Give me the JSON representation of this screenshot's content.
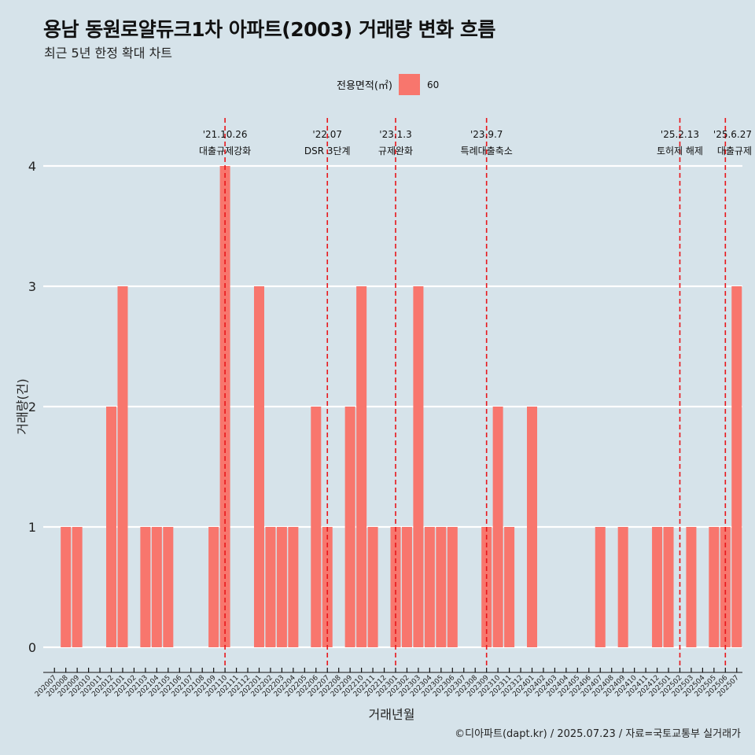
{
  "title": "용남 동원로얄듀크1차 아파트(2003) 거래량 변화 흐름",
  "subtitle": "최근 5년 한정 확대 차트",
  "caption": "©디아파트(dapt.kr) / 2025.07.23 / 자료=국토교통부 실거래가",
  "colors": {
    "background": "#d6e3ea",
    "bar": "#f8766d",
    "event_line": "#e8161b",
    "grid": "#ffffff"
  },
  "chart_data": {
    "type": "bar",
    "xlabel": "거래년월",
    "ylabel": "거래량(건)",
    "ylim": [
      0,
      4
    ],
    "yticks": [
      0,
      1,
      2,
      3,
      4
    ],
    "grid": true,
    "legend": {
      "title": "전용면적(㎡)",
      "position": "top",
      "entries": [
        "60"
      ]
    },
    "categories": [
      "202007",
      "202008",
      "202009",
      "202010",
      "202011",
      "202012",
      "202101",
      "202102",
      "202103",
      "202104",
      "202105",
      "202106",
      "202107",
      "202108",
      "202109",
      "202110",
      "202111",
      "202112",
      "202201",
      "202202",
      "202203",
      "202204",
      "202205",
      "202206",
      "202207",
      "202208",
      "202209",
      "202210",
      "202211",
      "202212",
      "202301",
      "202302",
      "202303",
      "202304",
      "202305",
      "202306",
      "202307",
      "202308",
      "202309",
      "202310",
      "202311",
      "202312",
      "202401",
      "202402",
      "202403",
      "202404",
      "202405",
      "202406",
      "202407",
      "202408",
      "202409",
      "202410",
      "202411",
      "202412",
      "202501",
      "202502",
      "202503",
      "202504",
      "202505",
      "202506",
      "202507"
    ],
    "series": [
      {
        "name": "60",
        "values": [
          0,
          1,
          1,
          0,
          0,
          2,
          3,
          0,
          1,
          1,
          1,
          0,
          0,
          0,
          1,
          4,
          0,
          0,
          3,
          1,
          1,
          1,
          0,
          2,
          1,
          0,
          2,
          3,
          1,
          0,
          1,
          1,
          3,
          1,
          1,
          1,
          0,
          0,
          1,
          2,
          1,
          0,
          2,
          0,
          0,
          0,
          0,
          0,
          1,
          0,
          1,
          0,
          0,
          1,
          1,
          0,
          1,
          0,
          1,
          1,
          3
        ]
      }
    ],
    "events": [
      {
        "x": "202110",
        "date": "'21.10.26",
        "label": "대출규제강화"
      },
      {
        "x": "202207",
        "date": "'22.07",
        "label": "DSR 3단계"
      },
      {
        "x": "202301",
        "date": "'23.1.3",
        "label": "규제완화"
      },
      {
        "x": "202309",
        "date": "'23.9.7",
        "label": "특례대출축소"
      },
      {
        "x": "202502",
        "date": "'25.2.13",
        "label": "토허제 해제"
      },
      {
        "x": "202506",
        "date": "'25.6.27",
        "label": "대출규제"
      }
    ]
  }
}
